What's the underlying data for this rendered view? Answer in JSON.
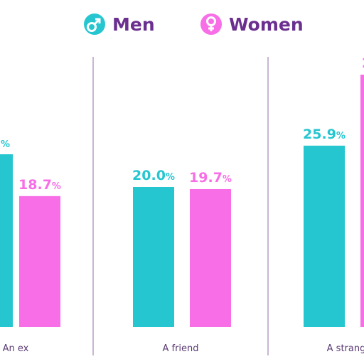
{
  "colors": {
    "men": "#26c6d1",
    "women": "#f76ee6",
    "legend_text": "#6b2f8f",
    "divider": "#c9b6d3",
    "category_text": "#5b3a73"
  },
  "legend": {
    "men_icon": "male-symbol-icon",
    "women_icon": "female-symbol-icon",
    "men_label": "Men",
    "women_label": "Women"
  },
  "chart_data": {
    "type": "bar",
    "categories": [
      "An ex",
      "A friend",
      "A strang"
    ],
    "series": [
      {
        "name": "Men",
        "values": [
          null,
          20.0,
          25.9
        ],
        "labels": [
          "%",
          "20.0",
          "25.9"
        ]
      },
      {
        "name": "Women",
        "values": [
          18.7,
          19.7,
          null
        ],
        "labels": [
          "18.7",
          "19.7",
          "2"
        ]
      }
    ],
    "value_suffix": "%",
    "ylim": [
      0,
      30
    ],
    "grid": false,
    "legend_position": "top-center"
  }
}
